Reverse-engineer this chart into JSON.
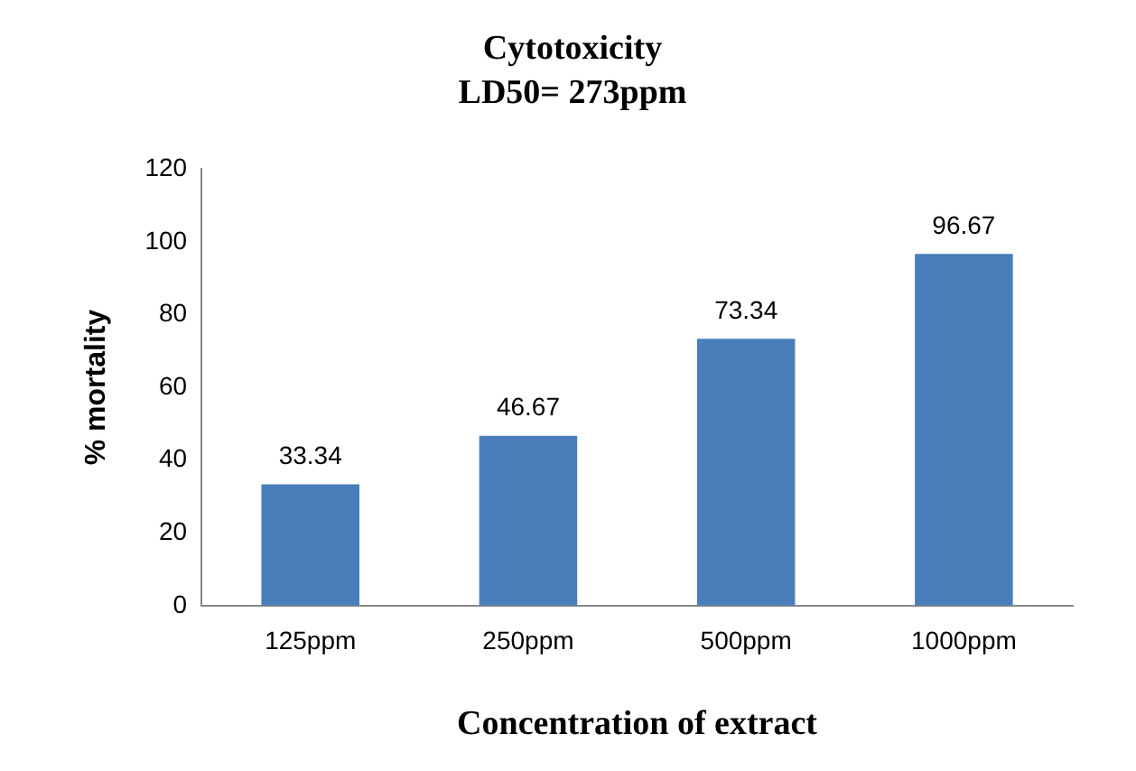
{
  "chart_data": {
    "type": "bar",
    "title": "Cytotoxicity",
    "subtitle": "LD50= 273ppm",
    "xlabel": "Concentration of extract",
    "ylabel": "% mortality",
    "categories": [
      "125ppm",
      "250ppm",
      "500ppm",
      "1000ppm"
    ],
    "values": [
      33.34,
      46.67,
      73.34,
      96.67
    ],
    "color": "#4a7ebb",
    "ylim": [
      0,
      120
    ],
    "yticks": [
      0,
      20,
      40,
      60,
      80,
      100,
      120
    ],
    "grid": false,
    "legend": false,
    "data_labels": true
  }
}
